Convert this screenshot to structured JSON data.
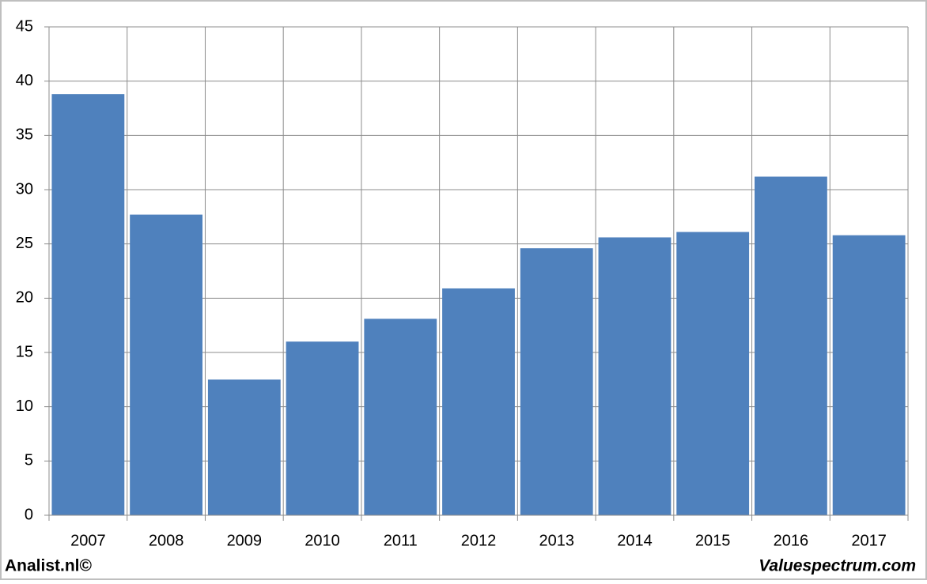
{
  "chart_data": {
    "type": "bar",
    "categories": [
      "2007",
      "2008",
      "2009",
      "2010",
      "2011",
      "2012",
      "2013",
      "2014",
      "2015",
      "2016",
      "2017"
    ],
    "values": [
      38.8,
      27.7,
      12.5,
      16.0,
      18.1,
      20.9,
      24.6,
      25.6,
      26.1,
      31.2,
      25.8
    ],
    "color": "#4f81bd",
    "ylim": [
      0,
      45
    ],
    "yticks": [
      0,
      5,
      10,
      15,
      20,
      25,
      30,
      35,
      40,
      45
    ],
    "grid": true,
    "annotations": [
      "Analist.nl©",
      "Valuespectrum.com"
    ]
  }
}
